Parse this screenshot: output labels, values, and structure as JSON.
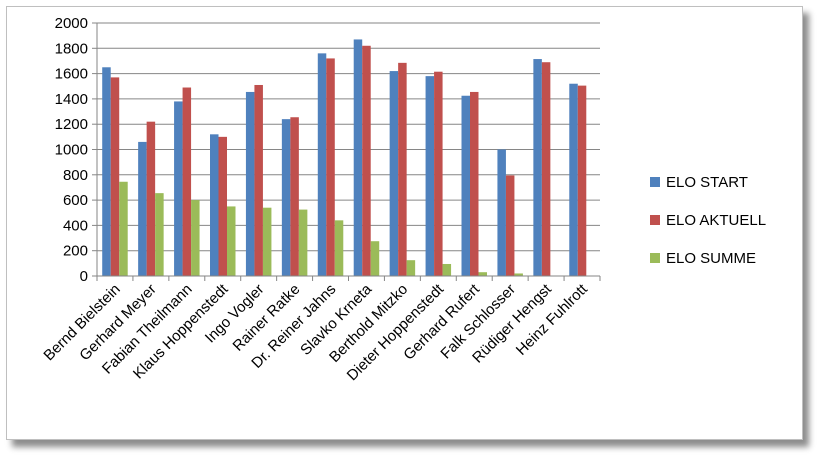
{
  "chart_data": {
    "type": "bar",
    "categories": [
      "Bernd Bielstein",
      "Gerhard Meyer",
      "Fabian Theilmann",
      "Klaus Hoppenstedt",
      "Ingo Vogler",
      "Rainer Ratke",
      "Dr. Reiner Jahns",
      "Slavko Krneta",
      "Berthold Mitzko",
      "Dieter Hoppenstedt",
      "Gerhard Rufert",
      "Falk Schlosser",
      "Rüdiger Hengst",
      "Heinz Fuhlrott"
    ],
    "series": [
      {
        "name": "ELO START",
        "color": "#4F81BD",
        "values": [
          1650,
          1060,
          1380,
          1120,
          1455,
          1240,
          1760,
          1870,
          1620,
          1580,
          1425,
          1000,
          1715,
          1520
        ]
      },
      {
        "name": "ELO AKTUELL",
        "color": "#C0504D",
        "values": [
          1570,
          1220,
          1490,
          1100,
          1510,
          1255,
          1720,
          1820,
          1685,
          1615,
          1455,
          795,
          1690,
          1505
        ]
      },
      {
        "name": "ELO SUMME",
        "color": "#9BBB59",
        "values": [
          745,
          655,
          600,
          550,
          540,
          525,
          440,
          275,
          125,
          95,
          30,
          20,
          0,
          0
        ]
      }
    ],
    "ylim": [
      0,
      2000
    ],
    "yticks": [
      "0",
      "200",
      "400",
      "600",
      "800",
      "1000",
      "1200",
      "1400",
      "1600",
      "1800",
      "2000"
    ],
    "grid": true,
    "legend_position": "right"
  }
}
